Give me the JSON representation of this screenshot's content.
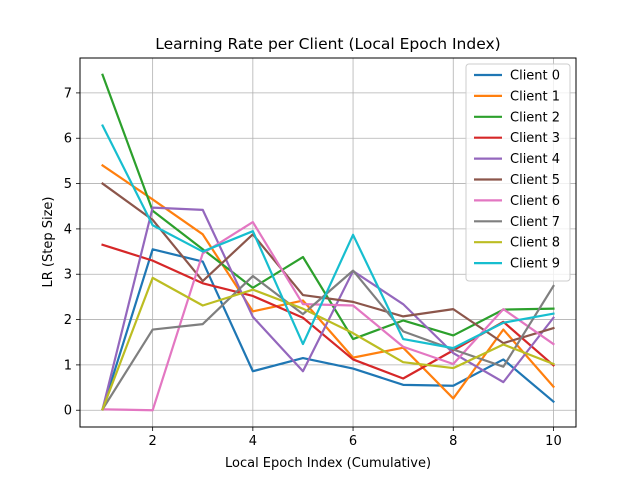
{
  "chart_data": {
    "type": "line",
    "title": "Learning Rate per Client (Local Epoch Index)",
    "xlabel": "Local Epoch Index (Cumulative)",
    "ylabel": "LR (Step Size)",
    "x": [
      1,
      2,
      3,
      4,
      5,
      6,
      7,
      8,
      9,
      10
    ],
    "xlim": [
      0.55,
      10.45
    ],
    "ylim": [
      -0.37,
      7.77
    ],
    "xticks": [
      2,
      4,
      6,
      8,
      10
    ],
    "yticks": [
      0,
      1,
      2,
      3,
      4,
      5,
      6,
      7
    ],
    "grid": true,
    "legend_position": "top-right",
    "series": [
      {
        "name": "Client 0",
        "color": "#1f77b4",
        "values": [
          0.02,
          3.55,
          3.28,
          0.86,
          1.15,
          0.92,
          0.56,
          0.54,
          1.12,
          0.19
        ]
      },
      {
        "name": "Client 1",
        "color": "#ff7f0e",
        "values": [
          5.4,
          4.65,
          3.88,
          2.18,
          2.42,
          1.16,
          1.38,
          0.26,
          1.78,
          0.52
        ]
      },
      {
        "name": "Client 2",
        "color": "#2ca02c",
        "values": [
          7.4,
          4.4,
          3.55,
          2.7,
          3.38,
          1.57,
          1.98,
          1.65,
          2.22,
          2.24
        ]
      },
      {
        "name": "Client 3",
        "color": "#d62728",
        "values": [
          3.65,
          3.3,
          2.8,
          2.52,
          2.04,
          1.12,
          0.7,
          1.32,
          1.95,
          0.99
        ]
      },
      {
        "name": "Client 4",
        "color": "#9467bd",
        "values": [
          0.02,
          4.47,
          4.42,
          2.06,
          0.86,
          3.07,
          2.34,
          1.26,
          0.62,
          2.04
        ]
      },
      {
        "name": "Client 5",
        "color": "#8c564b",
        "values": [
          5.0,
          4.2,
          2.85,
          3.88,
          2.54,
          2.39,
          2.07,
          2.23,
          1.48,
          1.81
        ]
      },
      {
        "name": "Client 6",
        "color": "#e377c2",
        "values": [
          0.02,
          0.0,
          3.46,
          4.15,
          2.34,
          2.31,
          1.4,
          1.02,
          2.23,
          1.46
        ]
      },
      {
        "name": "Client 7",
        "color": "#7f7f7f",
        "values": [
          0.02,
          1.78,
          1.9,
          2.96,
          2.12,
          3.08,
          1.74,
          1.34,
          0.96,
          2.74
        ]
      },
      {
        "name": "Client 8",
        "color": "#bcbd22",
        "values": [
          0.02,
          2.92,
          2.31,
          2.66,
          2.24,
          1.7,
          1.06,
          0.93,
          1.45,
          1.02
        ]
      },
      {
        "name": "Client 9",
        "color": "#17becf",
        "values": [
          6.28,
          4.08,
          3.5,
          3.95,
          1.46,
          3.87,
          1.57,
          1.37,
          1.93,
          2.13
        ]
      }
    ]
  }
}
